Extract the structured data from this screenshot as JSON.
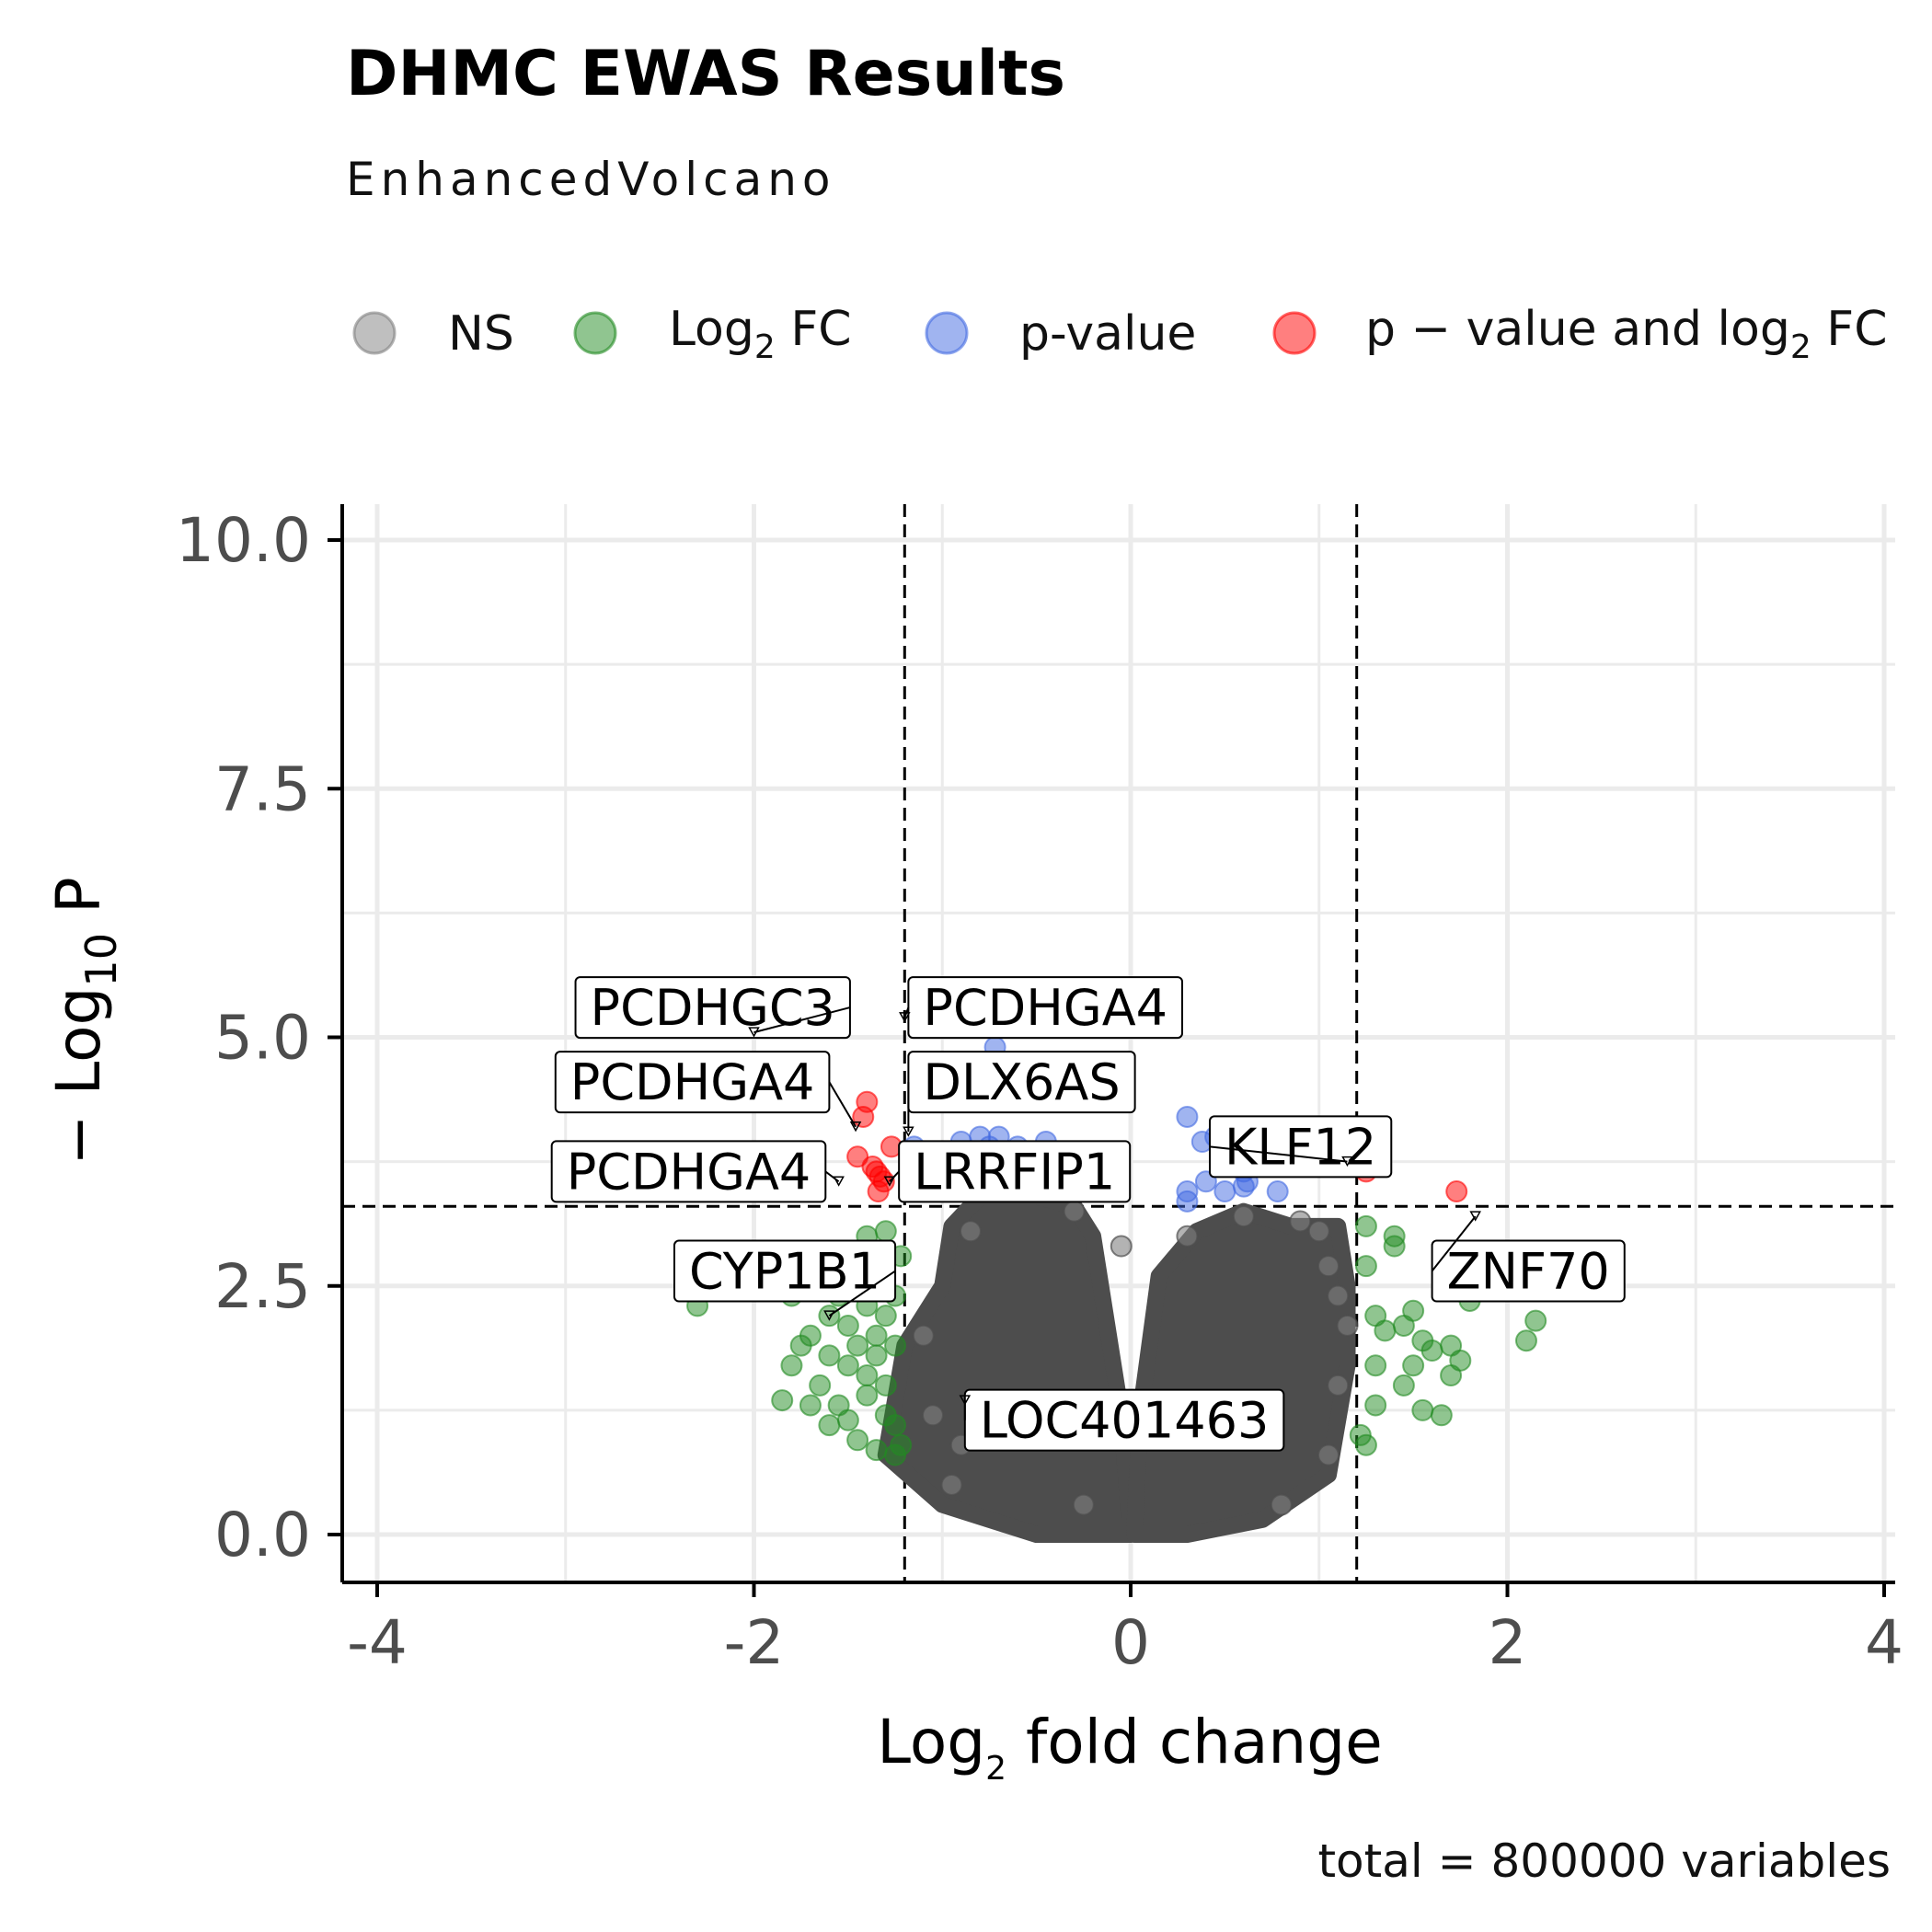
{
  "title": "DHMC EWAS Results",
  "subtitle": "EnhancedVolcano",
  "caption": "total = 800000 variables",
  "legend": {
    "position": "top",
    "items": [
      {
        "key": "ns",
        "label": "NS",
        "color": "#808080"
      },
      {
        "key": "fc",
        "label_main": "Log",
        "label_sub": "2",
        "label_tail": " FC",
        "color": "#228b22"
      },
      {
        "key": "p",
        "label": "p-value",
        "color": "#4169e1"
      },
      {
        "key": "pfc",
        "label_main": "p − value and log",
        "label_sub": "2",
        "label_tail": " FC",
        "color": "#ff0000"
      }
    ]
  },
  "colors": {
    "ns": "#4d4d4d",
    "ns_legend": "#808080",
    "fc": "#228b22",
    "p": "#4169e1",
    "pfc": "#ff0000",
    "grid": "#ebebeb",
    "axis": "#000000"
  },
  "chart_data": {
    "type": "scatter",
    "xlabel_main": "Log",
    "xlabel_sub": "2",
    "xlabel_tail": " fold change",
    "ylabel_pre": "− Log",
    "ylabel_sub": "10",
    "ylabel_tail": " P",
    "xlim": [
      -4,
      4
    ],
    "ylim": [
      0,
      10
    ],
    "x_ticks": [
      -4,
      -2,
      0,
      2,
      4
    ],
    "x_tick_labels": [
      "-4",
      "-2",
      "0",
      "2",
      "4"
    ],
    "y_ticks": [
      0,
      2.5,
      5,
      7.5,
      10
    ],
    "y_tick_labels": [
      "0.0",
      "2.5",
      "5.0",
      "7.5",
      "10.0"
    ],
    "grid": true,
    "fc_cutoff": [
      -1.2,
      1.2
    ],
    "p_cutoff_neglog10": 3.3,
    "ns_cloud": {
      "description": "dense non-significant points",
      "left_outline": [
        [
          -1.3,
          0.8
        ],
        [
          -1.2,
          1.9
        ],
        [
          -1.0,
          2.5
        ],
        [
          -0.95,
          3.1
        ],
        [
          -0.8,
          3.4
        ],
        [
          -0.5,
          3.4
        ],
        [
          -0.3,
          3.3
        ],
        [
          -0.2,
          3.0
        ],
        [
          -0.05,
          1.2
        ],
        [
          0.0,
          0.0
        ],
        [
          -0.5,
          0.0
        ],
        [
          -1.0,
          0.3
        ]
      ],
      "right_outline": [
        [
          0.02,
          0.0
        ],
        [
          0.05,
          1.2
        ],
        [
          0.15,
          2.6
        ],
        [
          0.35,
          3.05
        ],
        [
          0.6,
          3.25
        ],
        [
          0.85,
          3.1
        ],
        [
          1.1,
          3.1
        ],
        [
          1.15,
          2.5
        ],
        [
          1.15,
          1.7
        ],
        [
          1.05,
          0.6
        ],
        [
          0.7,
          0.15
        ],
        [
          0.3,
          0.0
        ]
      ],
      "points": [
        [
          -1.05,
          1.2
        ],
        [
          -0.9,
          0.9
        ],
        [
          -1.1,
          2.0
        ],
        [
          -0.85,
          3.05
        ],
        [
          -0.3,
          3.25
        ],
        [
          -0.05,
          2.9
        ],
        [
          -0.25,
          0.3
        ],
        [
          0.3,
          3.0
        ],
        [
          0.6,
          3.2
        ],
        [
          0.9,
          3.15
        ],
        [
          1.0,
          3.05
        ],
        [
          1.1,
          2.4
        ],
        [
          1.1,
          1.5
        ],
        [
          1.05,
          0.8
        ],
        [
          0.8,
          0.3
        ],
        [
          1.15,
          2.1
        ],
        [
          1.05,
          2.7
        ],
        [
          -0.95,
          0.5
        ]
      ]
    },
    "series": [
      {
        "key": "fc",
        "points": [
          [
            -2.3,
            2.3
          ],
          [
            -2.05,
            2.6
          ],
          [
            -1.9,
            2.7
          ],
          [
            -1.8,
            1.7
          ],
          [
            -1.75,
            1.9
          ],
          [
            -1.7,
            2.0
          ],
          [
            -1.65,
            1.5
          ],
          [
            -1.6,
            2.2
          ],
          [
            -1.6,
            1.8
          ],
          [
            -1.55,
            1.3
          ],
          [
            -1.55,
            2.4
          ],
          [
            -1.5,
            1.7
          ],
          [
            -1.5,
            2.1
          ],
          [
            -1.45,
            2.5
          ],
          [
            -1.45,
            1.9
          ],
          [
            -1.4,
            1.6
          ],
          [
            -1.4,
            2.3
          ],
          [
            -1.4,
            1.4
          ],
          [
            -1.35,
            2.0
          ],
          [
            -1.35,
            1.8
          ],
          [
            -1.35,
            2.6
          ],
          [
            -1.3,
            1.2
          ],
          [
            -1.3,
            2.2
          ],
          [
            -1.3,
            1.5
          ],
          [
            -1.25,
            1.9
          ],
          [
            -1.25,
            2.4
          ],
          [
            -1.25,
            1.1
          ],
          [
            -1.22,
            2.8
          ],
          [
            -1.22,
            0.9
          ],
          [
            -1.5,
            1.15
          ],
          [
            -1.45,
            0.95
          ],
          [
            -1.6,
            1.1
          ],
          [
            -1.7,
            1.3
          ],
          [
            -1.85,
            1.35
          ],
          [
            -1.8,
            2.4
          ],
          [
            -1.95,
            2.5
          ],
          [
            -1.7,
            2.8
          ],
          [
            -1.55,
            2.85
          ],
          [
            -1.4,
            3.0
          ],
          [
            -1.3,
            3.05
          ],
          [
            -1.25,
            0.8
          ],
          [
            -1.35,
            0.85
          ],
          [
            1.25,
            3.1
          ],
          [
            1.25,
            2.7
          ],
          [
            1.3,
            1.7
          ],
          [
            1.35,
            2.05
          ],
          [
            1.4,
            2.9
          ],
          [
            1.4,
            3.0
          ],
          [
            1.45,
            2.1
          ],
          [
            1.45,
            1.5
          ],
          [
            1.5,
            2.25
          ],
          [
            1.5,
            1.7
          ],
          [
            1.55,
            1.95
          ],
          [
            1.55,
            1.25
          ],
          [
            1.6,
            1.85
          ],
          [
            1.65,
            1.2
          ],
          [
            1.7,
            1.6
          ],
          [
            1.7,
            1.9
          ],
          [
            1.75,
            1.75
          ],
          [
            1.8,
            2.35
          ],
          [
            1.85,
            2.5
          ],
          [
            2.1,
            1.95
          ],
          [
            2.15,
            2.15
          ],
          [
            1.25,
            0.9
          ],
          [
            1.3,
            1.3
          ],
          [
            1.22,
            1.0
          ],
          [
            1.3,
            2.2
          ]
        ]
      },
      {
        "key": "p",
        "points": [
          [
            -1.15,
            3.9
          ],
          [
            -1.05,
            3.75
          ],
          [
            -1.0,
            3.85
          ],
          [
            -0.95,
            3.7
          ],
          [
            -0.9,
            3.95
          ],
          [
            -0.85,
            3.8
          ],
          [
            -0.8,
            4.0
          ],
          [
            -0.8,
            3.6
          ],
          [
            -0.75,
            3.9
          ],
          [
            -0.7,
            4.0
          ],
          [
            -0.65,
            3.75
          ],
          [
            -0.6,
            3.9
          ],
          [
            -0.55,
            3.7
          ],
          [
            -0.5,
            3.85
          ],
          [
            -0.45,
            3.5
          ],
          [
            -0.4,
            3.75
          ],
          [
            -0.45,
            3.95
          ],
          [
            -0.7,
            3.55
          ],
          [
            -0.95,
            3.5
          ],
          [
            -1.1,
            3.6
          ],
          [
            -0.78,
            4.7
          ],
          [
            -0.92,
            4.62
          ],
          [
            -0.72,
            4.9
          ],
          [
            0.3,
            4.2
          ],
          [
            0.45,
            4.0
          ],
          [
            0.55,
            3.85
          ],
          [
            0.6,
            3.65
          ],
          [
            0.65,
            3.8
          ],
          [
            0.7,
            3.7
          ],
          [
            0.75,
            3.95
          ],
          [
            0.8,
            3.75
          ],
          [
            0.4,
            3.55
          ],
          [
            0.5,
            3.45
          ],
          [
            0.6,
            3.5
          ],
          [
            0.78,
            3.45
          ],
          [
            0.3,
            3.35
          ],
          [
            0.38,
            3.95
          ],
          [
            0.62,
            3.55
          ],
          [
            0.85,
            3.85
          ],
          [
            0.3,
            3.45
          ]
        ]
      },
      {
        "key": "pfc",
        "points": [
          [
            -1.4,
            4.35
          ],
          [
            -1.42,
            4.2
          ],
          [
            -1.27,
            3.9
          ],
          [
            -1.45,
            3.8
          ],
          [
            -1.37,
            3.7
          ],
          [
            -1.35,
            3.65
          ],
          [
            -1.33,
            3.6
          ],
          [
            -1.31,
            3.55
          ],
          [
            -1.34,
            3.45
          ],
          [
            1.25,
            3.65
          ],
          [
            1.73,
            3.45
          ]
        ]
      }
    ],
    "labels": [
      {
        "text": "PCDHGC3",
        "anchor": [
          -2.0,
          5.05
        ],
        "box": [
          -1.49,
          5.3
        ],
        "align": "right"
      },
      {
        "text": "PCDHGA4",
        "anchor": [
          -1.2,
          5.2
        ],
        "box": [
          -1.18,
          5.3
        ],
        "align": "left"
      },
      {
        "text": "PCDHGA4",
        "anchor": [
          -1.46,
          4.1
        ],
        "box": [
          -1.6,
          4.55
        ],
        "align": "right"
      },
      {
        "text": "DLX6AS",
        "anchor": [
          -1.18,
          4.05
        ],
        "box": [
          -1.18,
          4.55
        ],
        "align": "left"
      },
      {
        "text": "PCDHGA4",
        "anchor": [
          -1.55,
          3.55
        ],
        "box": [
          -1.62,
          3.65
        ],
        "align": "right"
      },
      {
        "text": "LRRFIP1",
        "anchor": [
          -1.28,
          3.55
        ],
        "box": [
          -1.23,
          3.65
        ],
        "align": "left"
      },
      {
        "text": "CYP1B1",
        "anchor": [
          -1.6,
          2.2
        ],
        "box": [
          -1.25,
          2.65
        ],
        "align": "right"
      },
      {
        "text": "LOC401463",
        "anchor": [
          -0.88,
          1.35
        ],
        "box": [
          -0.88,
          1.15
        ],
        "align": "left"
      },
      {
        "text": "KLF12",
        "anchor": [
          1.15,
          3.75
        ],
        "box": [
          0.42,
          3.9
        ],
        "align": "left"
      },
      {
        "text": "ZNF70",
        "anchor": [
          1.83,
          3.2
        ],
        "box": [
          1.6,
          2.65
        ],
        "align": "left"
      }
    ]
  }
}
